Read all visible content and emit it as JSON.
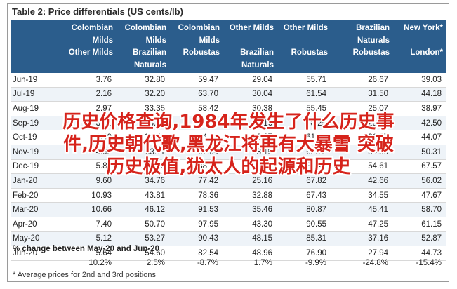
{
  "title": "Table 2: Price differentials (US cents/lb)",
  "columns": [
    {
      "l1": "Colombian",
      "l2": "Milds",
      "l3": "Other Milds",
      "l4": ""
    },
    {
      "l1": "Colombian",
      "l2": "Milds",
      "l3": "Brazilian",
      "l4": "Naturals"
    },
    {
      "l1": "Colombian",
      "l2": "Milds",
      "l3": "Robustas",
      "l4": ""
    },
    {
      "l1": "Other Milds",
      "l2": "",
      "l3": "Brazilian",
      "l4": "Naturals"
    },
    {
      "l1": "Other Milds",
      "l2": "",
      "l3": "Robustas",
      "l4": ""
    },
    {
      "l1": "Brazilian",
      "l2": "Naturals",
      "l3": "Robustas",
      "l4": ""
    },
    {
      "l1": "New York*",
      "l2": "",
      "l3": "London*",
      "l4": ""
    }
  ],
  "rows": [
    {
      "month": "Jun-19",
      "v": [
        "3.76",
        "32.80",
        "59.47",
        "29.04",
        "55.71",
        "26.67",
        "39.03"
      ]
    },
    {
      "month": "Jul-19",
      "v": [
        "2.16",
        "32.20",
        "63.70",
        "30.04",
        "61.54",
        "31.50",
        "44.18"
      ]
    },
    {
      "month": "Aug-19",
      "v": [
        "2.97",
        "33.35",
        "58.42",
        "30.38",
        "55.45",
        "25.07",
        "38.97"
      ]
    },
    {
      "month": "Sep-19",
      "v": [
        "3.01",
        "33.17",
        "61.26",
        "30.16",
        "58.25",
        "28.09",
        "42.50"
      ]
    },
    {
      "month": "Oct-19",
      "v": [
        "2.49",
        "32.56",
        "64.13",
        "30.07",
        "61.64",
        "31.57",
        "44.07"
      ]
    },
    {
      "month": "Nov-19",
      "v": [
        "4.92",
        "33.11",
        "67.64",
        "28.19",
        "62.72",
        "34.53",
        "50.31"
      ]
    },
    {
      "month": "Dec-19",
      "v": [
        "5.85",
        "33.65",
        "88.26",
        "27.80",
        "82.41",
        "54.61",
        "67.57"
      ]
    },
    {
      "month": "Jan-20",
      "v": [
        "9.60",
        "34.76",
        "77.42",
        "25.16",
        "67.82",
        "42.66",
        "56.02"
      ]
    },
    {
      "month": "Feb-20",
      "v": [
        "10.93",
        "43.81",
        "78.36",
        "32.88",
        "67.43",
        "34.55",
        "47.67"
      ]
    },
    {
      "month": "Mar-20",
      "v": [
        "10.66",
        "46.12",
        "91.53",
        "35.46",
        "80.87",
        "45.41",
        "58.70"
      ]
    },
    {
      "month": "Apr-20",
      "v": [
        "7.40",
        "50.70",
        "97.95",
        "43.30",
        "90.55",
        "47.25",
        "61.15"
      ]
    },
    {
      "month": "May-20",
      "v": [
        "5.12",
        "53.27",
        "90.43",
        "48.15",
        "85.31",
        "37.16",
        "52.87"
      ]
    },
    {
      "month": "Jun-20",
      "v": [
        "5.64",
        "54.60",
        "82.54",
        "48.96",
        "76.90",
        "27.94",
        "44.73"
      ]
    }
  ],
  "pct_heading": "% change between May-20 and Jun-20",
  "pct_values": [
    "10.2%",
    "2.5%",
    "-8.7%",
    "1.7%",
    "-9.9%",
    "-24.8%",
    "-15.4%"
  ],
  "footnote": "* Average prices for 2nd and 3rd positions",
  "overlay_lines": [
    "历史价格查询,1984年发生了什么历史事",
    "件,历史朝代歌,黑龙江将再有大暴雪 突破",
    "历史极值,犹太人的起源和历史"
  ]
}
